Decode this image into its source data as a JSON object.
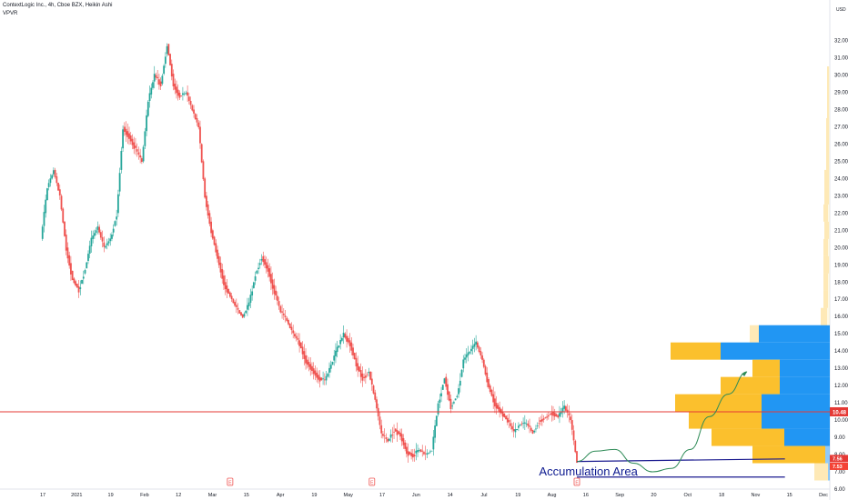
{
  "header": {
    "symbol_line": "ContextLogic Inc., 4h, Cboe BZX, Heikin Ashi",
    "indicator": "VPVR"
  },
  "annotation": {
    "text": "Accumulation Area",
    "color": "#0d1a8f"
  },
  "colors": {
    "up": "#26a69a",
    "down": "#ef5350",
    "price_line": "#e53935",
    "trend": "#1a1a8f",
    "vp_up": "#2196f3",
    "vp_down": "#fbc02d",
    "background": "#ffffff"
  },
  "chart_data": {
    "type": "candlestick",
    "ylim": [
      6.0,
      33.4
    ],
    "y_ticks": [
      "6.00",
      "7.00",
      "8.00",
      "9.00",
      "10.00",
      "11.00",
      "12.00",
      "13.00",
      "14.00",
      "15.00",
      "16.00",
      "17.00",
      "18.00",
      "19.00",
      "20.00",
      "21.00",
      "22.00",
      "23.00",
      "24.00",
      "25.00",
      "26.00",
      "27.00",
      "28.00",
      "29.00",
      "30.00",
      "31.00",
      "32.00"
    ],
    "top_label": "USD",
    "x_labels": [
      "17",
      "2021",
      "19",
      "Feb",
      "12",
      "Mar",
      "15",
      "Apr",
      "19",
      "May",
      "17",
      "Jun",
      "14",
      "Jul",
      "19",
      "Aug",
      "16",
      "Sep",
      "20",
      "Oct",
      "18",
      "Nov",
      "15",
      "Dec"
    ],
    "price_path": [
      [
        0,
        20.5
      ],
      [
        2,
        23.5
      ],
      [
        4,
        24.5
      ],
      [
        6,
        23.0
      ],
      [
        8,
        20.0
      ],
      [
        10,
        18.2
      ],
      [
        12,
        17.6
      ],
      [
        14,
        18.8
      ],
      [
        16,
        20.5
      ],
      [
        18,
        21.2
      ],
      [
        20,
        20.0
      ],
      [
        22,
        20.5
      ],
      [
        24,
        22.0
      ],
      [
        26,
        27.0
      ],
      [
        28,
        26.5
      ],
      [
        30,
        25.7
      ],
      [
        32,
        25.0
      ],
      [
        34,
        28.5
      ],
      [
        36,
        30.0
      ],
      [
        38,
        29.5
      ],
      [
        40,
        31.8
      ],
      [
        42,
        29.5
      ],
      [
        44,
        28.8
      ],
      [
        46,
        29.0
      ],
      [
        48,
        28.0
      ],
      [
        50,
        27.0
      ],
      [
        52,
        23.0
      ],
      [
        54,
        21.0
      ],
      [
        56,
        19.5
      ],
      [
        58,
        18.0
      ],
      [
        60,
        17.2
      ],
      [
        62,
        16.5
      ],
      [
        64,
        16.0
      ],
      [
        66,
        16.8
      ],
      [
        68,
        18.5
      ],
      [
        70,
        19.5
      ],
      [
        72,
        18.8
      ],
      [
        74,
        17.5
      ],
      [
        76,
        16.3
      ],
      [
        78,
        15.8
      ],
      [
        80,
        15.0
      ],
      [
        82,
        14.5
      ],
      [
        84,
        13.5
      ],
      [
        86,
        13.0
      ],
      [
        88,
        12.5
      ],
      [
        90,
        12.3
      ],
      [
        92,
        13.2
      ],
      [
        94,
        14.2
      ],
      [
        96,
        15.0
      ],
      [
        98,
        14.5
      ],
      [
        100,
        13.3
      ],
      [
        102,
        12.5
      ],
      [
        104,
        12.8
      ],
      [
        106,
        11.2
      ],
      [
        108,
        9.2
      ],
      [
        110,
        8.8
      ],
      [
        112,
        9.5
      ],
      [
        114,
        9.2
      ],
      [
        116,
        8.2
      ],
      [
        118,
        8.0
      ],
      [
        120,
        8.3
      ],
      [
        122,
        8.0
      ],
      [
        124,
        8.3
      ],
      [
        126,
        11.0
      ],
      [
        128,
        12.5
      ],
      [
        130,
        10.8
      ],
      [
        132,
        11.5
      ],
      [
        134,
        13.5
      ],
      [
        136,
        14.0
      ],
      [
        138,
        14.5
      ],
      [
        140,
        13.5
      ],
      [
        142,
        12.0
      ],
      [
        144,
        11.0
      ],
      [
        146,
        10.5
      ],
      [
        148,
        10.0
      ],
      [
        150,
        9.3
      ],
      [
        152,
        9.8
      ],
      [
        154,
        9.8
      ],
      [
        156,
        9.3
      ],
      [
        158,
        10.0
      ],
      [
        160,
        10.2
      ],
      [
        162,
        10.5
      ],
      [
        164,
        10.2
      ],
      [
        166,
        10.8
      ],
      [
        168,
        10.0
      ],
      [
        170,
        7.6
      ]
    ],
    "last_index": 170,
    "path_span": 170,
    "price_lines": [
      {
        "value": 10.48,
        "label": "10.48",
        "color": "#e53935"
      }
    ],
    "price_badges": [
      {
        "value": 7.56,
        "label": "7.56",
        "color": "#e53935"
      },
      {
        "value": 7.53,
        "label": "7.53",
        "color": "#f44336"
      }
    ],
    "trendlines": [
      {
        "from": [
          170,
          7.6
        ],
        "to": [
          236,
          7.75
        ],
        "color": "#1a1a8f"
      },
      {
        "from": [
          170,
          6.7
        ],
        "to": [
          236,
          6.7
        ],
        "color": "#1a1a8f"
      }
    ],
    "projection": [
      [
        170,
        7.6
      ],
      [
        176,
        8.2
      ],
      [
        182,
        8.3
      ],
      [
        188,
        7.5
      ],
      [
        194,
        7.0
      ],
      [
        200,
        7.2
      ],
      [
        206,
        8.3
      ],
      [
        212,
        10.2
      ],
      [
        218,
        11.5
      ],
      [
        224,
        12.8
      ]
    ],
    "earnings_markers": [
      60,
      105,
      170
    ],
    "volume_profile": [
      {
        "price": 15.0,
        "up": 78,
        "down": 10
      },
      {
        "price": 14.0,
        "up": 120,
        "down": 55
      },
      {
        "price": 13.0,
        "up": 55,
        "down": 30
      },
      {
        "price": 12.0,
        "up": 55,
        "down": 65
      },
      {
        "price": 11.0,
        "up": 75,
        "down": 95
      },
      {
        "price": 10.0,
        "up": 75,
        "down": 80
      },
      {
        "price": 9.0,
        "up": 50,
        "down": 80
      },
      {
        "price": 8.0,
        "up": 5,
        "down": 80
      },
      {
        "price": 7.0,
        "up": 2,
        "down": 15
      },
      {
        "price": 16.0,
        "up": 3,
        "down": 7
      },
      {
        "price": 17.0,
        "up": 2,
        "down": 5
      },
      {
        "price": 18.0,
        "up": 2,
        "down": 5
      },
      {
        "price": 19.0,
        "up": 1,
        "down": 6
      },
      {
        "price": 20.0,
        "up": 2,
        "down": 5
      },
      {
        "price": 21.0,
        "up": 1,
        "down": 5
      },
      {
        "price": 22.0,
        "up": 2,
        "down": 5
      },
      {
        "price": 23.0,
        "up": 1,
        "down": 5
      },
      {
        "price": 24.0,
        "up": 1,
        "down": 5
      },
      {
        "price": 25.0,
        "up": 1,
        "down": 3
      },
      {
        "price": 26.0,
        "up": 1,
        "down": 3
      },
      {
        "price": 27.0,
        "up": 1,
        "down": 3
      },
      {
        "price": 28.0,
        "up": 1,
        "down": 2
      },
      {
        "price": 29.0,
        "up": 1,
        "down": 2
      },
      {
        "price": 30.0,
        "up": 1,
        "down": 2
      }
    ]
  }
}
